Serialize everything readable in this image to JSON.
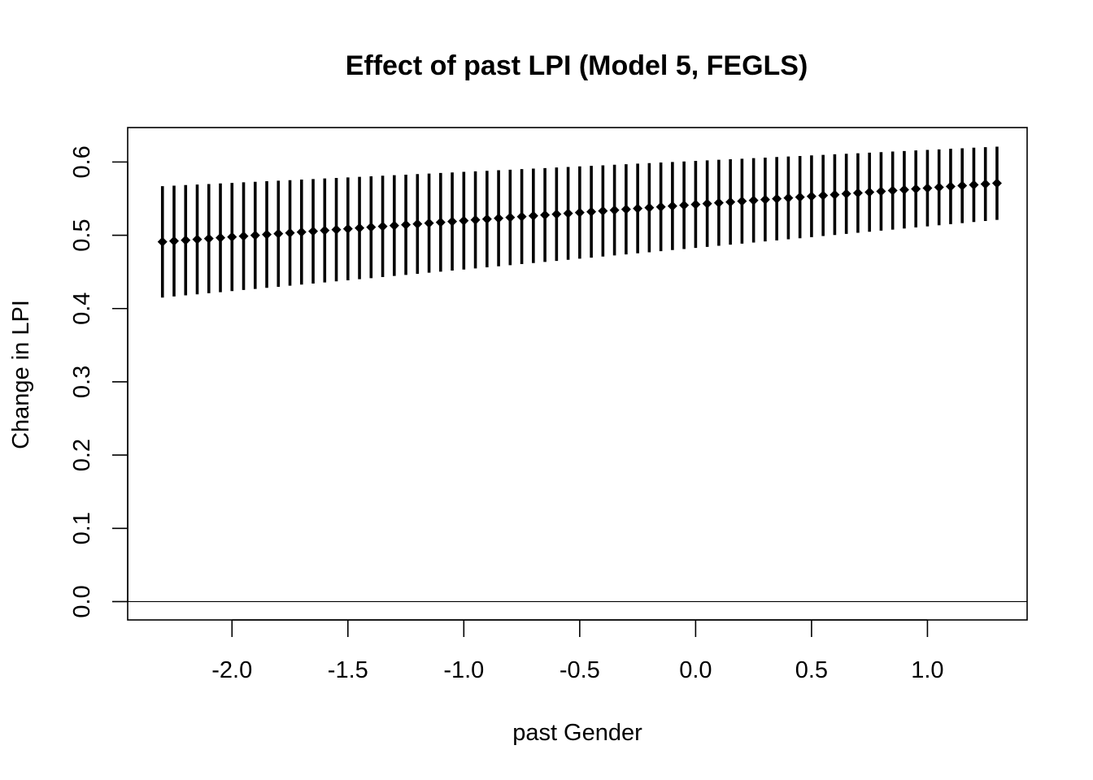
{
  "chart_data": {
    "type": "scatter",
    "subtype": "point-with-error-bars",
    "title": "Effect of past LPI (Model 5, FEGLS)",
    "xlabel": "past Gender",
    "ylabel": "Change in LPI",
    "xlim": [
      -2.45,
      1.43
    ],
    "ylim": [
      -0.025,
      0.647
    ],
    "x_ticks": [
      -2.0,
      -1.5,
      -1.0,
      -0.5,
      0.0,
      0.5,
      1.0
    ],
    "x_tick_labels": [
      "-2.0",
      "-1.5",
      "-1.0",
      "-0.5",
      "0.0",
      "0.5",
      "1.0"
    ],
    "y_ticks": [
      0.0,
      0.1,
      0.2,
      0.3,
      0.4,
      0.5,
      0.6
    ],
    "y_tick_labels": [
      "0.0",
      "0.1",
      "0.2",
      "0.3",
      "0.4",
      "0.5",
      "0.6"
    ],
    "reference_line_y": 0.0,
    "grid": false,
    "marker": "diamond",
    "color": "#000000",
    "series": [
      {
        "x_start": -2.3,
        "x_end": 1.3,
        "x_step": 0.05,
        "y_start": 0.491,
        "y_end": 0.571,
        "lower_start": 0.415,
        "lower_end": 0.521,
        "upper_start": 0.567,
        "upper_end": 0.621,
        "lower_curve_min": 0.415,
        "upper_curve_flat": 0.563
      }
    ]
  }
}
